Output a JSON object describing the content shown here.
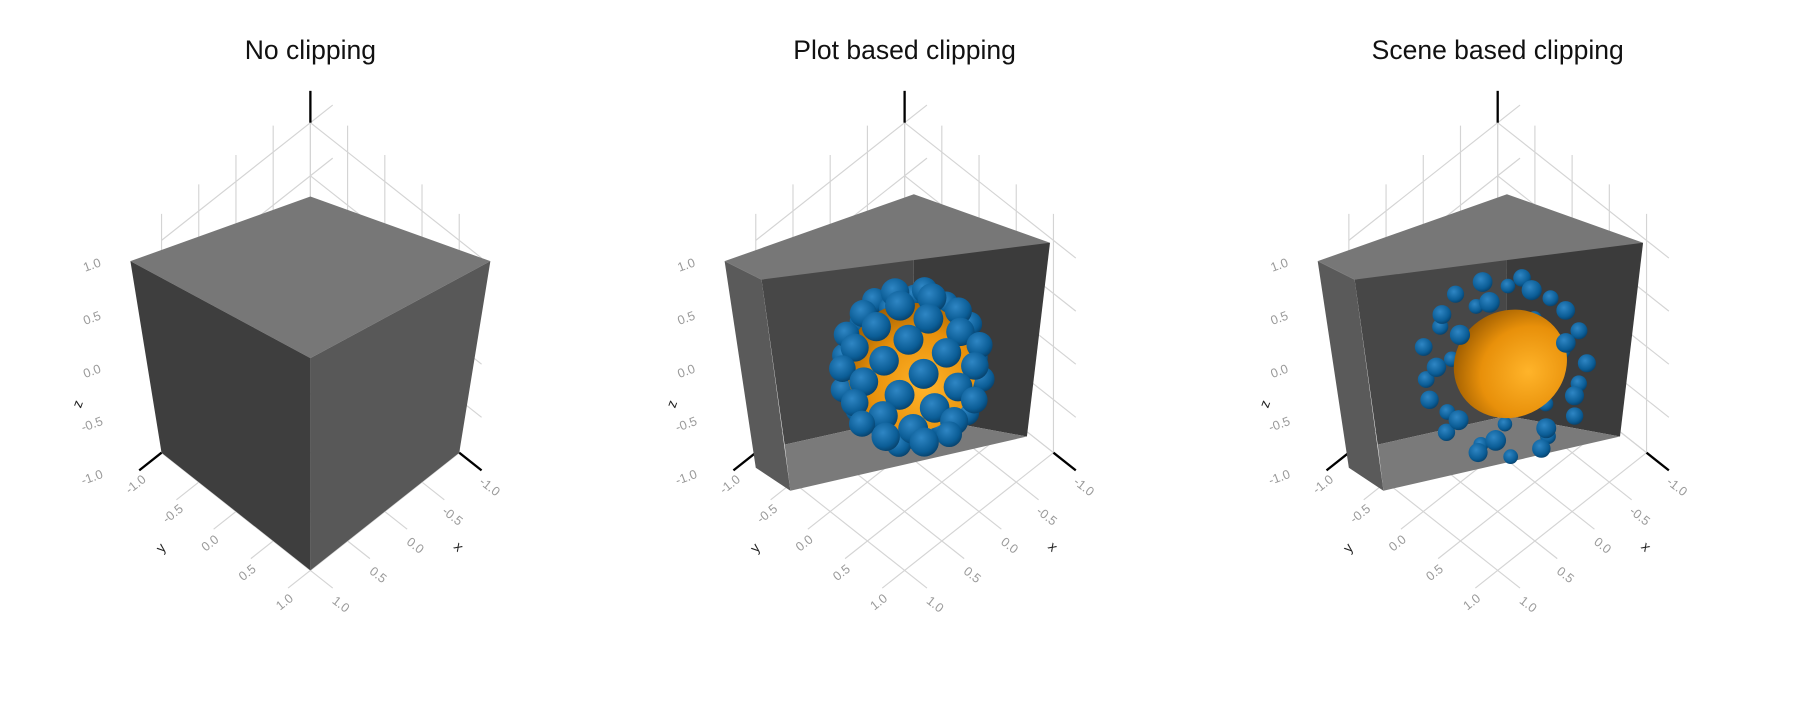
{
  "panels": [
    {
      "title": "No clipping"
    },
    {
      "title": "Plot based clipping"
    },
    {
      "title": "Scene based clipping"
    }
  ],
  "axes": {
    "x_label": "x",
    "y_label": "y",
    "z_label": "z",
    "ticks": [
      "-1.0",
      "-0.5",
      "0.0",
      "0.5",
      "1.0"
    ]
  }
}
